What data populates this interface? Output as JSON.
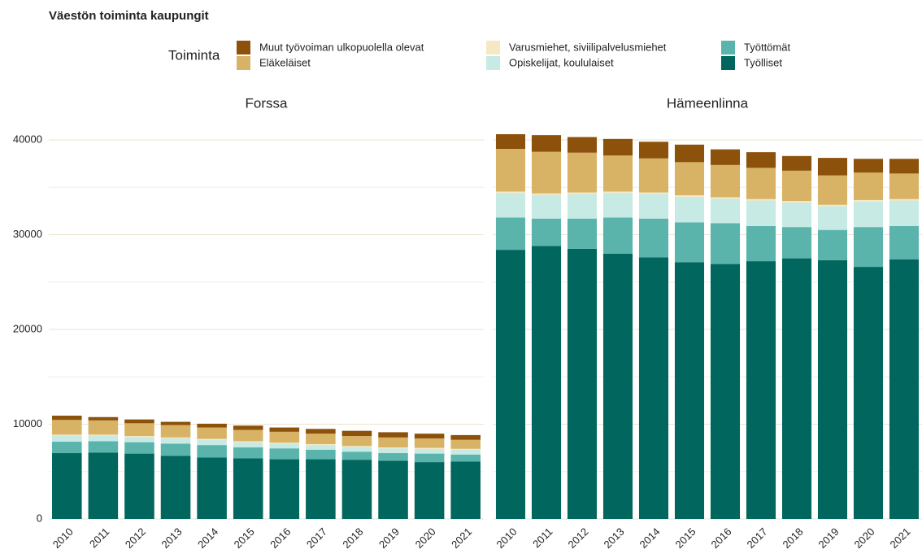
{
  "title": "Väestön toiminta kaupungit",
  "legend_title": "Toiminta",
  "chart_data": [
    {
      "type": "bar",
      "stacked": true,
      "title": "Forssa",
      "categories": [
        "2010",
        "2011",
        "2012",
        "2013",
        "2014",
        "2015",
        "2016",
        "2017",
        "2018",
        "2019",
        "2020",
        "2021"
      ],
      "ylim": [
        0,
        41500
      ],
      "yticks": [
        0,
        10000,
        20000,
        30000,
        40000
      ],
      "grid": true,
      "series": [
        {
          "name": "Työlliset",
          "color": "#01665e",
          "values": [
            6950,
            7000,
            6900,
            6650,
            6500,
            6400,
            6300,
            6300,
            6250,
            6150,
            6000,
            6050
          ]
        },
        {
          "name": "Työttömät",
          "color": "#5ab4ac",
          "values": [
            1200,
            1200,
            1200,
            1300,
            1300,
            1150,
            1150,
            1000,
            850,
            800,
            900,
            750
          ]
        },
        {
          "name": "Opiskelijat, koululaiset",
          "color": "#c7eae5",
          "values": [
            650,
            600,
            550,
            550,
            550,
            550,
            500,
            500,
            500,
            500,
            500,
            500
          ]
        },
        {
          "name": "Varusmiehet, siviilipalvelusmiehet",
          "color": "#f6e8c3",
          "values": [
            100,
            100,
            100,
            100,
            100,
            100,
            100,
            100,
            100,
            100,
            100,
            100
          ]
        },
        {
          "name": "Eläkeläiset",
          "color": "#d8b365",
          "values": [
            1550,
            1500,
            1350,
            1300,
            1200,
            1200,
            1150,
            1100,
            1050,
            1050,
            1000,
            950
          ]
        },
        {
          "name": "Muut työvoiman ulkopuolella olevat",
          "color": "#8c510a",
          "values": [
            450,
            350,
            400,
            350,
            400,
            450,
            450,
            500,
            550,
            550,
            500,
            500
          ]
        }
      ]
    },
    {
      "type": "bar",
      "stacked": true,
      "title": "Hämeenlinna",
      "categories": [
        "2010",
        "2011",
        "2012",
        "2013",
        "2014",
        "2015",
        "2016",
        "2017",
        "2018",
        "2019",
        "2020",
        "2021"
      ],
      "ylim": [
        0,
        41500
      ],
      "yticks": [
        0,
        10000,
        20000,
        30000,
        40000
      ],
      "grid": true,
      "series": [
        {
          "name": "Työlliset",
          "color": "#01665e",
          "values": [
            28400,
            28800,
            28500,
            28000,
            27600,
            27100,
            26900,
            27200,
            27500,
            27300,
            26600,
            27400
          ]
        },
        {
          "name": "Työttömät",
          "color": "#5ab4ac",
          "values": [
            3400,
            2900,
            3200,
            3800,
            4100,
            4200,
            4300,
            3700,
            3300,
            3200,
            4200,
            3500
          ]
        },
        {
          "name": "Opiskelijat, koululaiset",
          "color": "#c7eae5",
          "values": [
            2600,
            2500,
            2600,
            2600,
            2600,
            2700,
            2600,
            2700,
            2600,
            2500,
            2700,
            2700
          ]
        },
        {
          "name": "Varusmiehet, siviilipalvelusmiehet",
          "color": "#f6e8c3",
          "values": [
            150,
            150,
            150,
            150,
            150,
            150,
            150,
            150,
            150,
            150,
            150,
            150
          ]
        },
        {
          "name": "Eläkeläiset",
          "color": "#d8b365",
          "values": [
            4500,
            4400,
            4200,
            3800,
            3600,
            3500,
            3400,
            3300,
            3200,
            3100,
            2900,
            2700
          ]
        },
        {
          "name": "Muut työvoiman ulkopuolella olevat",
          "color": "#8c510a",
          "values": [
            1550,
            1750,
            1650,
            1750,
            1750,
            1850,
            1650,
            1650,
            1550,
            1850,
            1450,
            1550
          ]
        }
      ]
    }
  ]
}
